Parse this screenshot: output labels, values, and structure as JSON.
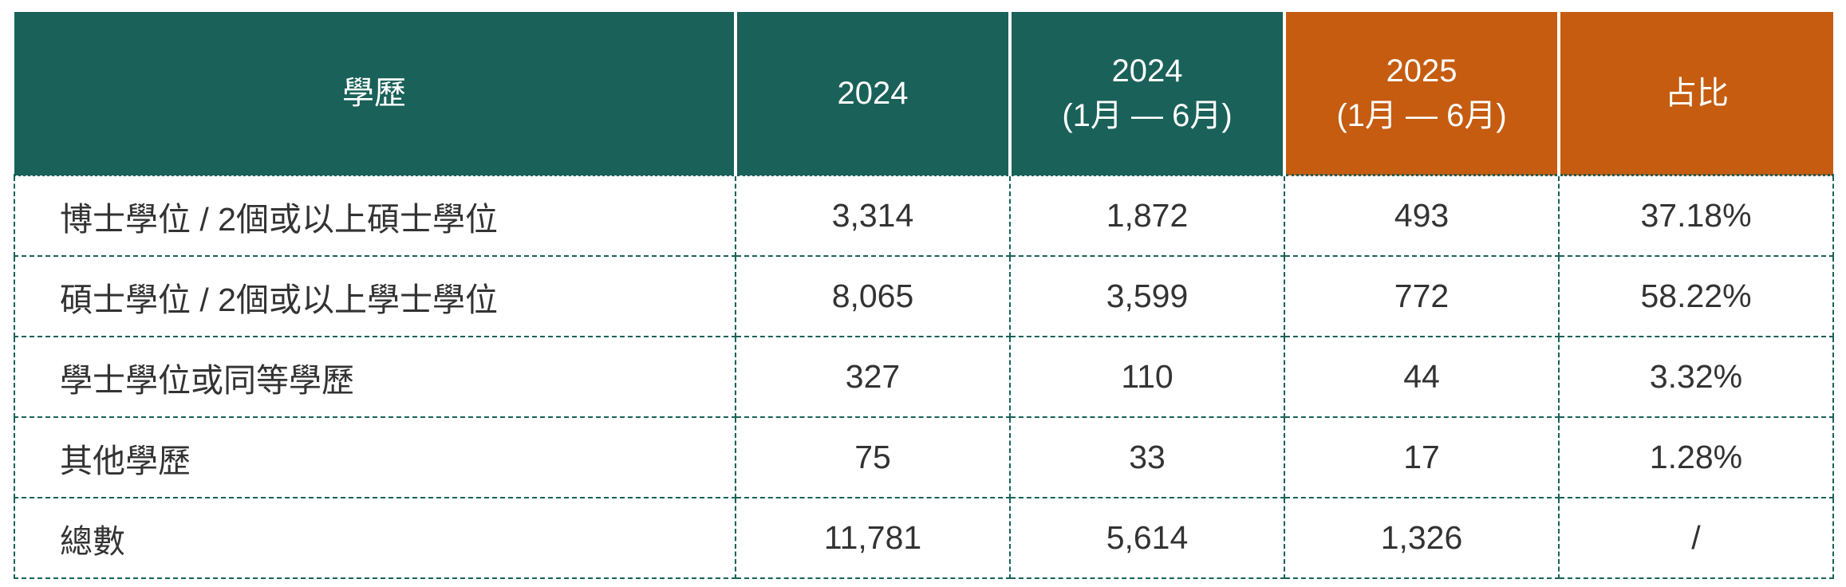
{
  "colors": {
    "header_teal": "#1a6159",
    "header_orange": "#c55c10"
  },
  "headers": [
    {
      "line1": "學歷",
      "line2": ""
    },
    {
      "line1": "2024",
      "line2": ""
    },
    {
      "line1": "2024",
      "line2": "(1月 — 6月)"
    },
    {
      "line1": "2025",
      "line2": "(1月 — 6月)"
    },
    {
      "line1": "占比",
      "line2": ""
    }
  ],
  "rows": [
    [
      "博士學位 / 2個或以上碩士學位",
      "3,314",
      "1,872",
      "493",
      "37.18%"
    ],
    [
      "碩士學位 / 2個或以上學士學位",
      "8,065",
      "3,599",
      "772",
      "58.22%"
    ],
    [
      "學士學位或同等學歷",
      "327",
      "110",
      "44",
      "3.32%"
    ],
    [
      "其他學歷",
      "75",
      "33",
      "17",
      "1.28%"
    ],
    [
      "總數",
      "11,781",
      "5,614",
      "1,326",
      "/"
    ]
  ]
}
